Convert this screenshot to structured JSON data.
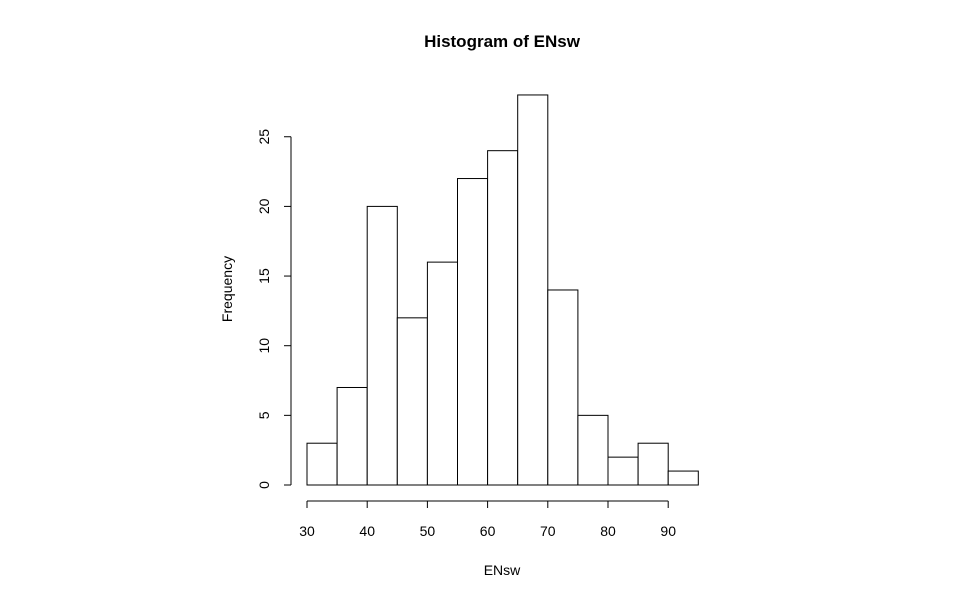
{
  "chart_data": {
    "type": "bar",
    "title": "Histogram of ENsw",
    "xlabel": "ENsw",
    "ylabel": "Frequency",
    "bins": [
      {
        "from": 30,
        "to": 35,
        "count": 3
      },
      {
        "from": 35,
        "to": 40,
        "count": 7
      },
      {
        "from": 40,
        "to": 45,
        "count": 20
      },
      {
        "from": 45,
        "to": 50,
        "count": 12
      },
      {
        "from": 50,
        "to": 55,
        "count": 16
      },
      {
        "from": 55,
        "to": 60,
        "count": 22
      },
      {
        "from": 60,
        "to": 65,
        "count": 24
      },
      {
        "from": 65,
        "to": 70,
        "count": 28
      },
      {
        "from": 70,
        "to": 75,
        "count": 14
      },
      {
        "from": 75,
        "to": 80,
        "count": 5
      },
      {
        "from": 80,
        "to": 85,
        "count": 2
      },
      {
        "from": 85,
        "to": 90,
        "count": 3
      },
      {
        "from": 90,
        "to": 95,
        "count": 1
      }
    ],
    "x_ticks": [
      "30",
      "40",
      "50",
      "60",
      "70",
      "80",
      "90"
    ],
    "y_ticks": [
      "0",
      "5",
      "10",
      "15",
      "20",
      "25"
    ],
    "xlim": [
      30,
      95
    ],
    "ylim": [
      0,
      28
    ],
    "grid": false,
    "legend": "none"
  }
}
